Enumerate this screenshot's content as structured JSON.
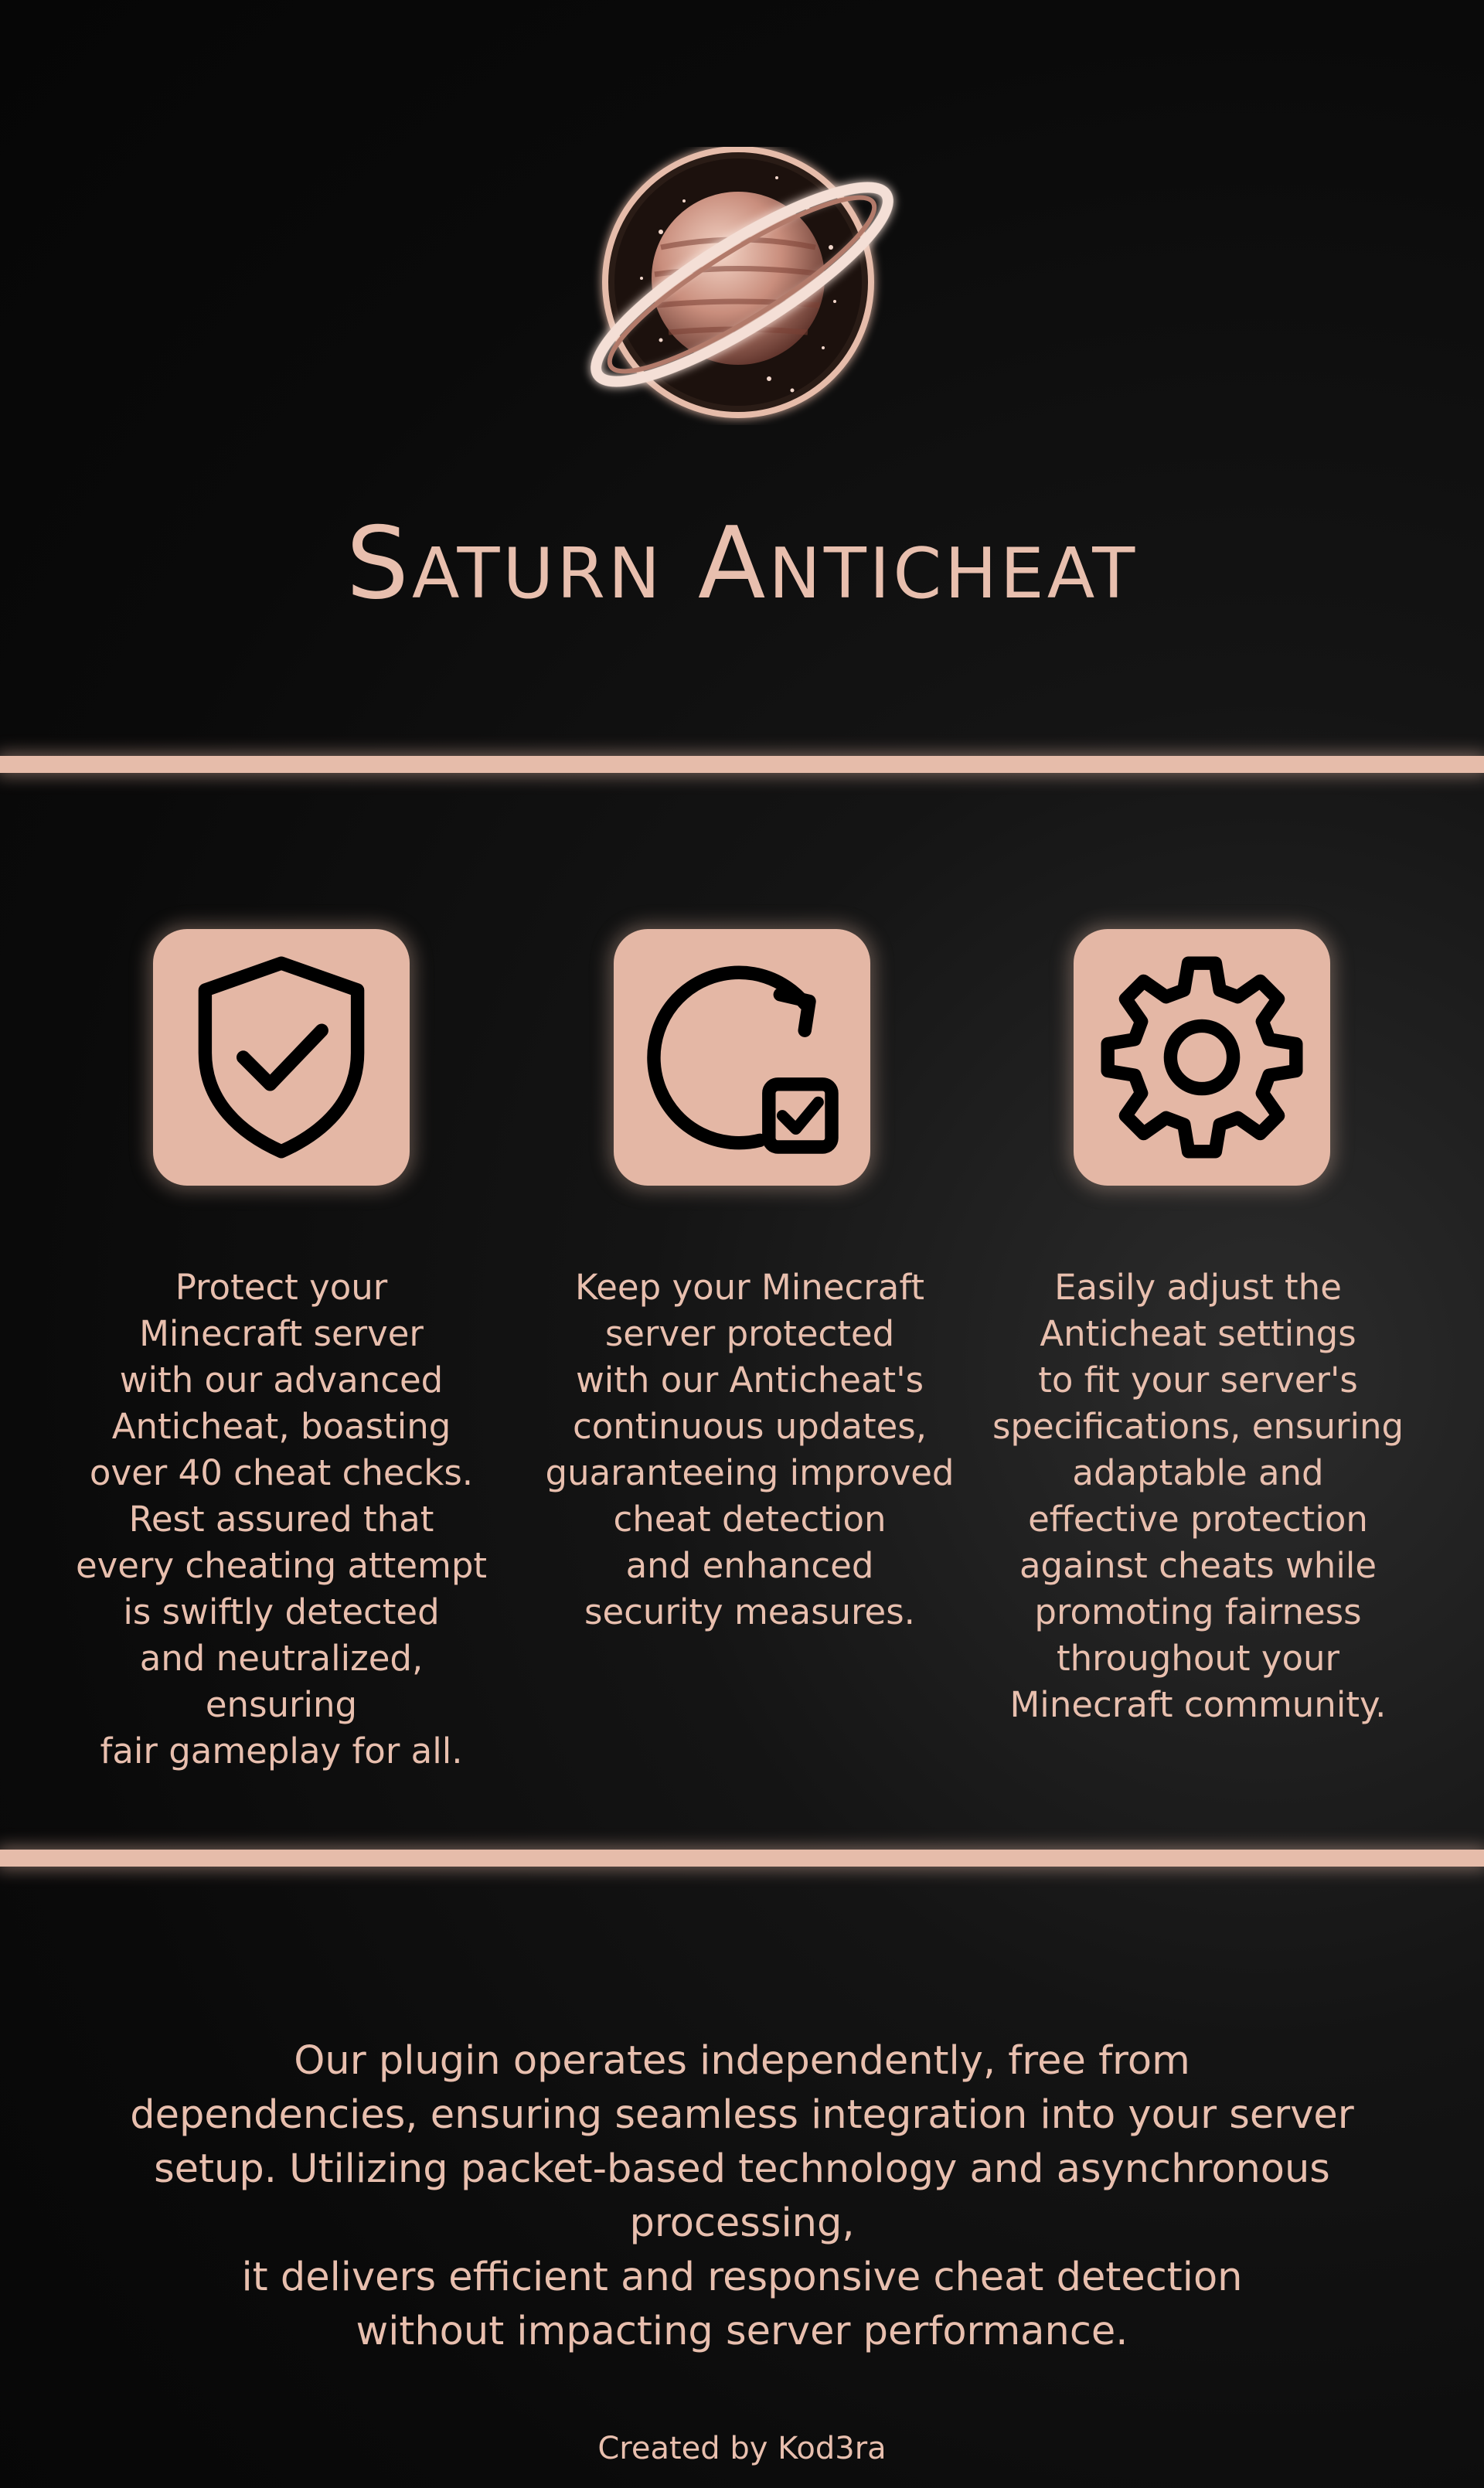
{
  "brand": {
    "title": "Saturn Anticheat",
    "logo_icon": "saturn-planet-logo",
    "accent_color": "#e6bcaa",
    "background_color": "#0a0a0a"
  },
  "features": [
    {
      "icon": "shield-check-icon",
      "text": "Protect your\nMinecraft server\nwith our advanced\nAnticheat, boasting\nover 40 cheat checks.\nRest assured that\nevery cheating attempt\nis swiftly detected\nand neutralized, ensuring\nfair gameplay for all."
    },
    {
      "icon": "refresh-check-icon",
      "text": "Keep your Minecraft\nserver protected\nwith our Anticheat's\ncontinuous updates,\nguaranteeing improved\ncheat detection\nand enhanced\nsecurity measures."
    },
    {
      "icon": "gear-icon",
      "text": "Easily adjust the\nAnticheat settings\nto fit your server's\nspecifications, ensuring\nadaptable and\neffective protection\nagainst cheats while\npromoting fairness\nthroughout your\nMinecraft community."
    }
  ],
  "summary": {
    "text": "Our plugin operates independently, free from\ndependencies, ensuring seamless integration into your server\nsetup. Utilizing packet-based technology and asynchronous processing,\nit delivers efficient and responsive cheat detection\nwithout impacting server performance."
  },
  "footer": {
    "credit": "Created by Kod3ra"
  }
}
